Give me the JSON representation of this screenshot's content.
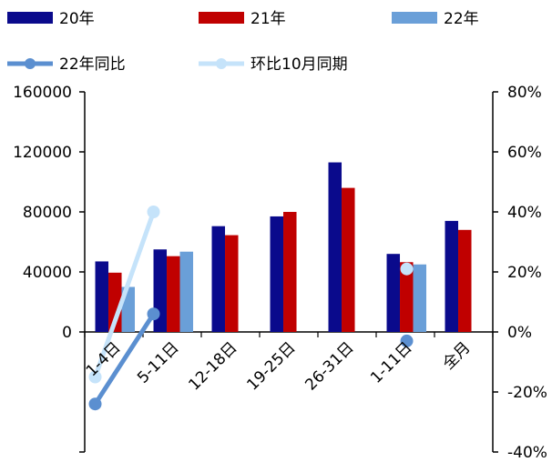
{
  "chart_data": {
    "type": "bar",
    "categories": [
      "1-4日",
      "5-11日",
      "12-18日",
      "19-25日",
      "26-31日",
      "1-11日",
      "全月"
    ],
    "series": [
      {
        "name": "20年",
        "type": "bar",
        "axis": "left",
        "color": "#0a0a8c",
        "values": [
          47000,
          55000,
          70500,
          77000,
          113000,
          52000,
          74000
        ]
      },
      {
        "name": "21年",
        "type": "bar",
        "axis": "left",
        "color": "#c00000",
        "values": [
          39500,
          50500,
          64500,
          80000,
          96000,
          46500,
          68000
        ]
      },
      {
        "name": "22年",
        "type": "bar",
        "axis": "left",
        "color": "#6a9fd8",
        "values": [
          30000,
          53500,
          null,
          null,
          null,
          45000,
          null
        ]
      },
      {
        "name": "22年同比",
        "type": "line",
        "axis": "right",
        "color": "#5b8fd0",
        "values": [
          -0.24,
          0.06,
          null,
          null,
          null,
          -0.03,
          null
        ]
      },
      {
        "name": "环比10月同期",
        "type": "line",
        "axis": "right",
        "color": "#c5e3fa",
        "values": [
          -0.15,
          0.4,
          null,
          null,
          null,
          0.21,
          null
        ]
      }
    ],
    "left_axis": {
      "ylim": [
        -80000,
        160000
      ],
      "ticks": [
        0,
        40000,
        80000,
        120000,
        160000
      ],
      "tick_labels": [
        "0",
        "40000",
        "80000",
        "120000",
        "160000"
      ]
    },
    "right_axis": {
      "ylim": [
        -0.4,
        0.8
      ],
      "ticks": [
        -0.4,
        -0.2,
        0,
        0.2,
        0.4,
        0.6,
        0.8
      ],
      "tick_labels": [
        "-40%",
        "-20%",
        "0%",
        "20%",
        "40%",
        "60%",
        "80%"
      ]
    },
    "legend": {
      "placement": "top",
      "entries": [
        "20年",
        "21年",
        "22年",
        "22年同比",
        "环比10月同期"
      ]
    },
    "grid": false
  }
}
